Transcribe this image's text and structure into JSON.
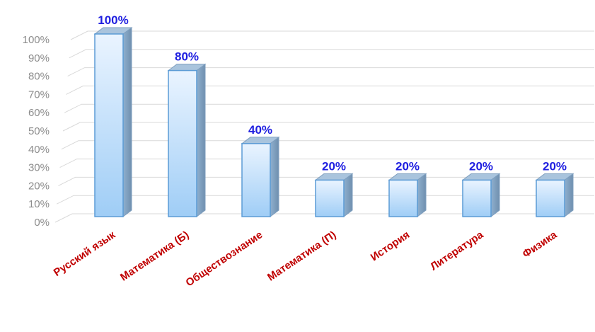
{
  "chart_data": {
    "type": "bar",
    "style": "3d-column",
    "categories": [
      "Русский язык",
      "Математика (Б)",
      "Обществознание",
      "Математика (П)",
      "История",
      "Литература",
      "Физика"
    ],
    "values": [
      100,
      80,
      40,
      20,
      20,
      20,
      20
    ],
    "value_labels": [
      "100%",
      "80%",
      "40%",
      "20%",
      "20%",
      "20%",
      "20%"
    ],
    "y_ticks": [
      "0%",
      "10%",
      "20%",
      "30%",
      "40%",
      "50%",
      "60%",
      "70%",
      "80%",
      "90%",
      "100%"
    ],
    "ylim": [
      0,
      100
    ],
    "grid": true,
    "colors": {
      "bar_top": "#eaf4ff",
      "bar_bottom": "#9fcdf6",
      "bar_edge": "#5b9bd5",
      "bar_side": "#7f9fbf",
      "bar_cap": "#a9c4dd",
      "value_label": "#1f1fe0",
      "category_label": "#c00000",
      "tick_label": "#8c8c8c",
      "grid": "#d9d9d9"
    }
  }
}
